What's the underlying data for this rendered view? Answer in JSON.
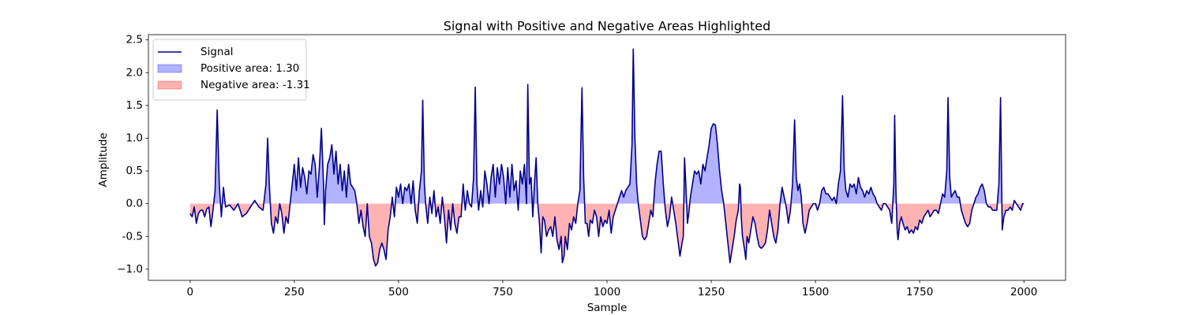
{
  "chart_data": {
    "type": "line",
    "title": "Signal with Positive and Negative Areas Highlighted",
    "xlabel": "Sample",
    "ylabel": "Amplitude",
    "x": [
      0,
      5,
      10,
      15,
      20,
      25,
      30,
      35,
      40,
      45,
      50,
      55,
      60,
      65,
      70,
      75,
      80,
      85,
      95,
      105,
      115,
      125,
      135,
      145,
      155,
      165,
      175,
      182,
      186,
      190,
      195,
      200,
      205,
      210,
      215,
      220,
      225,
      230,
      235,
      240,
      245,
      250,
      255,
      260,
      265,
      270,
      275,
      280,
      285,
      290,
      295,
      300,
      305,
      310,
      315,
      320,
      322,
      325,
      330,
      335,
      340,
      345,
      350,
      355,
      360,
      365,
      370,
      375,
      380,
      385,
      390,
      395,
      400,
      405,
      410,
      415,
      420,
      425,
      430,
      435,
      440,
      445,
      450,
      455,
      460,
      465,
      470,
      475,
      480,
      485,
      490,
      495,
      500,
      505,
      510,
      515,
      520,
      525,
      530,
      535,
      540,
      545,
      550,
      555,
      558,
      562,
      565,
      570,
      575,
      580,
      585,
      590,
      595,
      600,
      605,
      610,
      615,
      620,
      625,
      630,
      635,
      640,
      645,
      650,
      655,
      660,
      665,
      670,
      675,
      680,
      684,
      688,
      692,
      697,
      702,
      707,
      712,
      717,
      722,
      727,
      732,
      737,
      742,
      747,
      752,
      757,
      762,
      767,
      772,
      777,
      782,
      787,
      792,
      797,
      802,
      807,
      810,
      814,
      818,
      822,
      826,
      830,
      834,
      838,
      842,
      846,
      850,
      855,
      860,
      865,
      870,
      875,
      880,
      885,
      890,
      893,
      897,
      900,
      905,
      910,
      915,
      920,
      925,
      930,
      935,
      940,
      944,
      948,
      952,
      956,
      960,
      965,
      970,
      975,
      980,
      985,
      990,
      995,
      1000,
      1005,
      1010,
      1015,
      1020,
      1025,
      1030,
      1035,
      1040,
      1045,
      1050,
      1055,
      1060,
      1063,
      1067,
      1071,
      1075,
      1080,
      1085,
      1090,
      1095,
      1100,
      1105,
      1110,
      1115,
      1120,
      1125,
      1130,
      1135,
      1140,
      1145,
      1150,
      1155,
      1160,
      1165,
      1170,
      1175,
      1180,
      1183,
      1186,
      1189,
      1193,
      1197,
      1200,
      1205,
      1210,
      1215,
      1220,
      1225,
      1230,
      1235,
      1240,
      1245,
      1250,
      1255,
      1260,
      1265,
      1270,
      1275,
      1280,
      1285,
      1290,
      1295,
      1300,
      1305,
      1310,
      1315,
      1318,
      1320,
      1322,
      1325,
      1330,
      1333,
      1336,
      1340,
      1345,
      1350,
      1355,
      1360,
      1365,
      1370,
      1375,
      1380,
      1385,
      1390,
      1395,
      1400,
      1405,
      1410,
      1415,
      1420,
      1425,
      1430,
      1435,
      1440,
      1445,
      1450,
      1454,
      1458,
      1462,
      1466,
      1470,
      1475,
      1480,
      1485,
      1490,
      1495,
      1500,
      1505,
      1510,
      1515,
      1520,
      1525,
      1530,
      1535,
      1540,
      1545,
      1550,
      1555,
      1560,
      1565,
      1569,
      1573,
      1578,
      1583,
      1588,
      1593,
      1598,
      1603,
      1608,
      1613,
      1618,
      1623,
      1628,
      1633,
      1638,
      1643,
      1648,
      1653,
      1658,
      1663,
      1668,
      1673,
      1678,
      1683,
      1688,
      1690,
      1693,
      1696,
      1698,
      1702,
      1706,
      1710,
      1715,
      1720,
      1725,
      1730,
      1735,
      1740,
      1745,
      1750,
      1755,
      1760,
      1765,
      1770,
      1775,
      1780,
      1785,
      1790,
      1795,
      1800,
      1805,
      1810,
      1815,
      1818,
      1822,
      1826,
      1830,
      1835,
      1840,
      1845,
      1850,
      1855,
      1860,
      1865,
      1870,
      1875,
      1880,
      1885,
      1890,
      1895,
      1900,
      1905,
      1910,
      1915,
      1920,
      1925,
      1930,
      1935,
      1940,
      1944,
      1948,
      1952,
      1957,
      1962,
      1967,
      1972,
      1977,
      1982,
      1987,
      1992,
      1997,
      2000
    ],
    "series": [
      {
        "name": "Signal",
        "color": "#00008b",
        "values": [
          -0.15,
          -0.2,
          -0.05,
          -0.3,
          -0.15,
          -0.1,
          -0.1,
          -0.2,
          -0.08,
          -0.05,
          -0.35,
          -0.1,
          0.2,
          1.43,
          0.3,
          -0.2,
          0.25,
          -0.05,
          -0.02,
          -0.1,
          0.0,
          -0.2,
          -0.15,
          -0.05,
          0.05,
          -0.05,
          -0.1,
          0.3,
          1.0,
          0.3,
          -0.3,
          -0.45,
          -0.2,
          -0.3,
          0.0,
          -0.15,
          -0.45,
          -0.2,
          -0.3,
          0.0,
          0.3,
          0.6,
          0.2,
          0.7,
          0.25,
          0.55,
          0.4,
          0.15,
          0.5,
          0.45,
          0.75,
          0.6,
          0.1,
          0.55,
          1.15,
          0.3,
          -0.32,
          0.2,
          0.6,
          0.7,
          0.9,
          0.45,
          0.8,
          0.3,
          0.6,
          0.2,
          0.5,
          0.1,
          0.6,
          0.3,
          0.25,
          0.2,
          0.0,
          -0.3,
          -0.1,
          -0.35,
          -0.5,
          0.0,
          -0.5,
          -0.6,
          -0.85,
          -0.95,
          -0.9,
          -0.7,
          -0.6,
          -0.7,
          -0.85,
          -0.4,
          -0.2,
          0.1,
          -0.2,
          0.25,
          0.1,
          0.3,
          0.0,
          0.25,
          0.2,
          0.3,
          0.0,
          0.35,
          -0.1,
          -0.3,
          0.2,
          0.5,
          1.58,
          0.3,
          0.0,
          -0.3,
          0.1,
          -0.15,
          0.2,
          -0.2,
          -0.05,
          -0.3,
          0.1,
          -0.2,
          -0.6,
          -0.1,
          -0.4,
          0.0,
          -0.3,
          -0.45,
          -0.2,
          -0.2,
          0.3,
          -0.1,
          0.2,
          0.0,
          -0.05,
          0.4,
          1.78,
          0.3,
          -0.1,
          0.2,
          -0.05,
          0.5,
          0.3,
          0.0,
          0.4,
          0.6,
          0.1,
          0.55,
          0.3,
          0.6,
          0.4,
          0.0,
          0.55,
          0.1,
          0.6,
          0.2,
          0.35,
          -0.1,
          0.5,
          0.3,
          0.6,
          0.0,
          1.82,
          0.3,
          0.4,
          -0.2,
          0.3,
          0.7,
          0.0,
          -0.3,
          -0.75,
          -0.2,
          -0.25,
          -0.5,
          -0.4,
          -0.35,
          -0.5,
          -0.2,
          -0.55,
          -0.7,
          -0.5,
          -0.9,
          -0.8,
          -0.5,
          -0.7,
          -0.3,
          -0.4,
          -0.2,
          -0.3,
          0.0,
          0.2,
          1.77,
          0.4,
          -0.3,
          -0.3,
          -0.5,
          -0.25,
          -0.3,
          -0.1,
          -0.2,
          -0.5,
          -0.2,
          -0.35,
          -0.25,
          -0.3,
          -0.1,
          -0.45,
          -0.2,
          -0.1,
          0.0,
          0.1,
          0.2,
          0.1,
          0.2,
          0.25,
          0.3,
          0.9,
          2.36,
          1.0,
          0.3,
          0.0,
          -0.25,
          -0.5,
          -0.55,
          -0.5,
          -0.3,
          -0.1,
          -0.2,
          0.3,
          0.6,
          0.8,
          0.8,
          0.3,
          -0.1,
          -0.35,
          -0.2,
          0.1,
          -0.1,
          -0.3,
          -0.55,
          -0.8,
          -0.6,
          -0.5,
          0.7,
          0.3,
          -0.3,
          -0.1,
          0.1,
          0.3,
          0.5,
          0.45,
          0.5,
          0.3,
          0.6,
          0.5,
          0.7,
          0.9,
          1.15,
          1.22,
          1.2,
          0.9,
          0.5,
          0.2,
          0.0,
          -0.3,
          -0.6,
          -0.9,
          -0.7,
          -0.5,
          -0.25,
          -0.1,
          0.3,
          0.25,
          -0.2,
          -0.5,
          -0.7,
          -0.85,
          -0.5,
          -0.6,
          -0.4,
          -0.2,
          -0.3,
          -0.5,
          -0.65,
          -0.68,
          -0.65,
          -0.6,
          -0.4,
          -0.1,
          -0.3,
          -0.5,
          -0.6,
          -0.4,
          0.0,
          0.25,
          0.1,
          -0.05,
          -0.3,
          -0.1,
          0.3,
          1.28,
          0.4,
          0.2,
          0.3,
          0.1,
          -0.3,
          -0.45,
          -0.3,
          -0.1,
          -0.05,
          0.0,
          0.0,
          -0.1,
          0.0,
          0.2,
          0.25,
          0.15,
          0.15,
          0.1,
          0.05,
          0.1,
          0.0,
          0.3,
          0.5,
          1.65,
          0.5,
          0.2,
          0.1,
          0.3,
          0.25,
          0.3,
          0.15,
          0.4,
          0.25,
          0.2,
          0.1,
          0.2,
          0.15,
          0.25,
          0.15,
          0.1,
          0.0,
          -0.05,
          -0.1,
          0.0,
          0.0,
          -0.05,
          -0.1,
          -0.3,
          0.3,
          1.35,
          0.2,
          -0.4,
          -0.55,
          -0.3,
          -0.2,
          -0.3,
          -0.4,
          -0.35,
          -0.45,
          -0.4,
          -0.45,
          -0.35,
          -0.4,
          -0.25,
          -0.3,
          -0.2,
          -0.15,
          -0.1,
          -0.2,
          -0.15,
          -0.1,
          -0.1,
          -0.15,
          0.0,
          0.15,
          0.1,
          0.5,
          1.62,
          0.4,
          0.1,
          0.15,
          0.2,
          0.1,
          0.1,
          -0.1,
          -0.2,
          -0.3,
          -0.35,
          -0.3,
          -0.1,
          0.0,
          0.1,
          0.15,
          0.25,
          0.3,
          0.2,
          0.0,
          -0.05,
          -0.05,
          -0.1,
          -0.1,
          -0.1,
          0.3,
          1.62,
          -0.4,
          -0.2,
          -0.1,
          -0.1,
          -0.05,
          -0.1,
          0.05,
          0.0,
          -0.05,
          -0.1,
          0.0,
          0.0
        ]
      }
    ],
    "areas": [
      {
        "name": "Positive area: 1.30",
        "color": "#0000ff",
        "side": "above"
      },
      {
        "name": "Negative area: -1.31",
        "color": "#ff0000",
        "side": "below"
      }
    ],
    "area_alpha": 0.3,
    "xlim": [
      -100,
      2100
    ],
    "xticks": [
      0,
      250,
      500,
      750,
      1000,
      1250,
      1500,
      1750,
      2000
    ],
    "ylim": [
      -1.17,
      2.58
    ],
    "yticks": [
      {
        "value": -1.0,
        "label": "−1.0"
      },
      -0.5,
      {
        "value": 0.0,
        "label": "0.0"
      },
      0.5,
      {
        "value": 1.0,
        "label": "1.0"
      },
      1.5,
      {
        "value": 2.0,
        "label": "2.0"
      },
      2.5
    ],
    "grid": false,
    "legend": "upper left"
  }
}
